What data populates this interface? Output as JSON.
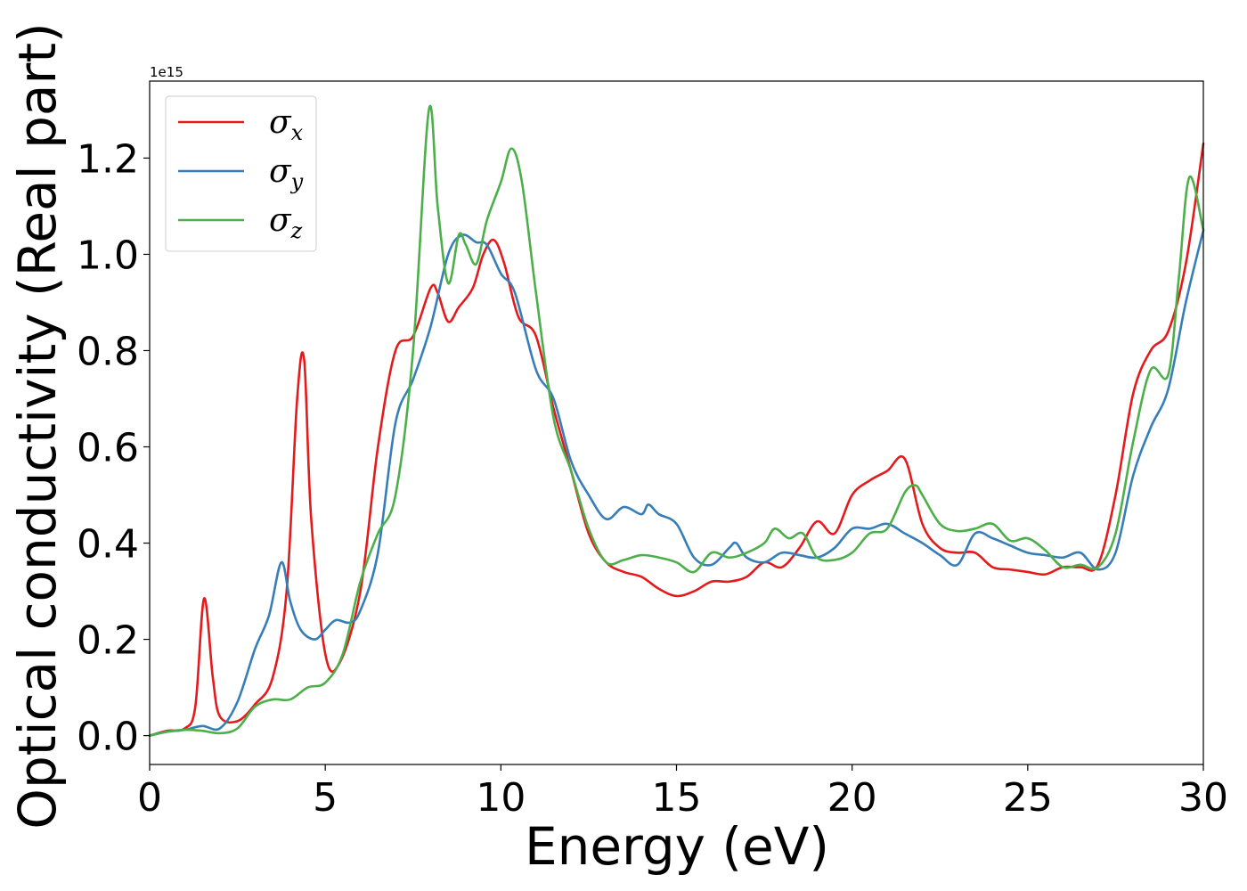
{
  "chart_data": {
    "type": "line",
    "xlabel": "Energy (eV)",
    "ylabel": "Optical conductivity (Real part)",
    "y_offset_label": "1e15",
    "xlim": [
      0,
      30
    ],
    "ylim": [
      -0.06,
      1.36
    ],
    "x_ticks": [
      0,
      5,
      10,
      15,
      20,
      25,
      30
    ],
    "x_tick_labels": [
      "0",
      "5",
      "10",
      "15",
      "20",
      "25",
      "30"
    ],
    "y_ticks": [
      0.0,
      0.2,
      0.4,
      0.6,
      0.8,
      1.0,
      1.2
    ],
    "y_tick_labels": [
      "0.0",
      "0.2",
      "0.4",
      "0.6",
      "0.8",
      "1.0",
      "1.2"
    ],
    "grid": false,
    "legend_position": "top-left",
    "series": [
      {
        "name": "σ",
        "subscript": "x",
        "color": "#e41a1c",
        "points": [
          [
            0,
            0
          ],
          [
            0.5,
            0.01
          ],
          [
            1.0,
            0.015
          ],
          [
            1.3,
            0.06
          ],
          [
            1.55,
            0.285
          ],
          [
            1.8,
            0.12
          ],
          [
            2.0,
            0.04
          ],
          [
            2.5,
            0.03
          ],
          [
            3.0,
            0.065
          ],
          [
            3.5,
            0.12
          ],
          [
            3.9,
            0.3
          ],
          [
            4.2,
            0.7
          ],
          [
            4.4,
            0.78
          ],
          [
            4.6,
            0.45
          ],
          [
            5.0,
            0.17
          ],
          [
            5.4,
            0.15
          ],
          [
            6.0,
            0.3
          ],
          [
            6.5,
            0.6
          ],
          [
            7.0,
            0.8
          ],
          [
            7.5,
            0.83
          ],
          [
            8.0,
            0.93
          ],
          [
            8.2,
            0.92
          ],
          [
            8.5,
            0.86
          ],
          [
            8.8,
            0.89
          ],
          [
            9.2,
            0.93
          ],
          [
            9.5,
            1.0
          ],
          [
            9.8,
            1.03
          ],
          [
            10.1,
            0.98
          ],
          [
            10.5,
            0.87
          ],
          [
            11.0,
            0.83
          ],
          [
            11.5,
            0.68
          ],
          [
            12.0,
            0.55
          ],
          [
            12.5,
            0.42
          ],
          [
            13.0,
            0.36
          ],
          [
            13.5,
            0.34
          ],
          [
            14.0,
            0.33
          ],
          [
            14.5,
            0.305
          ],
          [
            15.0,
            0.29
          ],
          [
            15.5,
            0.3
          ],
          [
            16.0,
            0.32
          ],
          [
            16.5,
            0.32
          ],
          [
            17.0,
            0.33
          ],
          [
            17.5,
            0.36
          ],
          [
            18.0,
            0.35
          ],
          [
            18.5,
            0.39
          ],
          [
            19.0,
            0.445
          ],
          [
            19.5,
            0.42
          ],
          [
            20.0,
            0.5
          ],
          [
            20.5,
            0.53
          ],
          [
            21.0,
            0.55
          ],
          [
            21.5,
            0.575
          ],
          [
            22.0,
            0.44
          ],
          [
            22.5,
            0.39
          ],
          [
            23.0,
            0.38
          ],
          [
            23.5,
            0.38
          ],
          [
            24.0,
            0.35
          ],
          [
            24.5,
            0.345
          ],
          [
            25.0,
            0.34
          ],
          [
            25.5,
            0.335
          ],
          [
            26.0,
            0.35
          ],
          [
            26.5,
            0.35
          ],
          [
            27.0,
            0.355
          ],
          [
            27.5,
            0.5
          ],
          [
            28.0,
            0.71
          ],
          [
            28.5,
            0.8
          ],
          [
            29.0,
            0.84
          ],
          [
            29.5,
            0.98
          ],
          [
            30.0,
            1.23
          ]
        ]
      },
      {
        "name": "σ",
        "subscript": "y",
        "color": "#377eb8",
        "points": [
          [
            0,
            0
          ],
          [
            0.5,
            0.008
          ],
          [
            1.0,
            0.012
          ],
          [
            1.5,
            0.02
          ],
          [
            2.0,
            0.015
          ],
          [
            2.5,
            0.07
          ],
          [
            3.0,
            0.18
          ],
          [
            3.4,
            0.25
          ],
          [
            3.75,
            0.36
          ],
          [
            4.0,
            0.28
          ],
          [
            4.3,
            0.22
          ],
          [
            4.7,
            0.2
          ],
          [
            5.0,
            0.22
          ],
          [
            5.3,
            0.24
          ],
          [
            5.7,
            0.235
          ],
          [
            6.0,
            0.26
          ],
          [
            6.5,
            0.38
          ],
          [
            7.0,
            0.65
          ],
          [
            7.5,
            0.74
          ],
          [
            8.0,
            0.85
          ],
          [
            8.5,
            1.0
          ],
          [
            8.9,
            1.04
          ],
          [
            9.3,
            1.025
          ],
          [
            9.6,
            1.02
          ],
          [
            10.0,
            0.96
          ],
          [
            10.4,
            0.92
          ],
          [
            11.0,
            0.76
          ],
          [
            11.5,
            0.7
          ],
          [
            12.0,
            0.57
          ],
          [
            12.5,
            0.5
          ],
          [
            13.0,
            0.45
          ],
          [
            13.5,
            0.475
          ],
          [
            14.0,
            0.46
          ],
          [
            14.2,
            0.48
          ],
          [
            14.5,
            0.46
          ],
          [
            15.0,
            0.44
          ],
          [
            15.5,
            0.37
          ],
          [
            16.0,
            0.355
          ],
          [
            16.5,
            0.39
          ],
          [
            16.7,
            0.4
          ],
          [
            17.0,
            0.37
          ],
          [
            17.5,
            0.36
          ],
          [
            18.0,
            0.38
          ],
          [
            18.5,
            0.375
          ],
          [
            19.0,
            0.37
          ],
          [
            19.5,
            0.39
          ],
          [
            20.0,
            0.43
          ],
          [
            20.5,
            0.43
          ],
          [
            21.0,
            0.44
          ],
          [
            21.5,
            0.42
          ],
          [
            22.0,
            0.4
          ],
          [
            22.5,
            0.375
          ],
          [
            23.0,
            0.355
          ],
          [
            23.5,
            0.42
          ],
          [
            24.0,
            0.41
          ],
          [
            24.5,
            0.395
          ],
          [
            25.0,
            0.38
          ],
          [
            25.5,
            0.375
          ],
          [
            26.0,
            0.37
          ],
          [
            26.5,
            0.38
          ],
          [
            27.0,
            0.345
          ],
          [
            27.5,
            0.38
          ],
          [
            28.0,
            0.54
          ],
          [
            28.5,
            0.64
          ],
          [
            29.0,
            0.72
          ],
          [
            29.5,
            0.9
          ],
          [
            30.0,
            1.05
          ]
        ]
      },
      {
        "name": "σ",
        "subscript": "z",
        "color": "#4daf4a",
        "points": [
          [
            0,
            0
          ],
          [
            0.5,
            0.008
          ],
          [
            1.0,
            0.012
          ],
          [
            1.5,
            0.01
          ],
          [
            2.0,
            0.005
          ],
          [
            2.5,
            0.015
          ],
          [
            3.0,
            0.06
          ],
          [
            3.5,
            0.075
          ],
          [
            4.0,
            0.075
          ],
          [
            4.5,
            0.1
          ],
          [
            5.0,
            0.11
          ],
          [
            5.5,
            0.17
          ],
          [
            6.0,
            0.32
          ],
          [
            6.5,
            0.42
          ],
          [
            7.0,
            0.5
          ],
          [
            7.5,
            0.8
          ],
          [
            7.95,
            1.3
          ],
          [
            8.2,
            1.1
          ],
          [
            8.5,
            0.94
          ],
          [
            8.8,
            1.04
          ],
          [
            9.0,
            1.02
          ],
          [
            9.3,
            0.98
          ],
          [
            9.6,
            1.07
          ],
          [
            10.0,
            1.15
          ],
          [
            10.3,
            1.22
          ],
          [
            10.6,
            1.15
          ],
          [
            11.0,
            0.92
          ],
          [
            11.5,
            0.66
          ],
          [
            12.0,
            0.55
          ],
          [
            12.5,
            0.43
          ],
          [
            13.0,
            0.36
          ],
          [
            13.5,
            0.365
          ],
          [
            14.0,
            0.375
          ],
          [
            14.5,
            0.37
          ],
          [
            15.0,
            0.36
          ],
          [
            15.5,
            0.34
          ],
          [
            16.0,
            0.38
          ],
          [
            16.5,
            0.37
          ],
          [
            17.0,
            0.38
          ],
          [
            17.5,
            0.4
          ],
          [
            17.8,
            0.43
          ],
          [
            18.2,
            0.41
          ],
          [
            18.6,
            0.42
          ],
          [
            19.0,
            0.37
          ],
          [
            19.5,
            0.365
          ],
          [
            20.0,
            0.38
          ],
          [
            20.5,
            0.42
          ],
          [
            21.0,
            0.43
          ],
          [
            21.5,
            0.505
          ],
          [
            21.8,
            0.52
          ],
          [
            22.0,
            0.5
          ],
          [
            22.5,
            0.44
          ],
          [
            23.0,
            0.425
          ],
          [
            23.5,
            0.43
          ],
          [
            24.0,
            0.44
          ],
          [
            24.5,
            0.405
          ],
          [
            25.0,
            0.41
          ],
          [
            25.5,
            0.385
          ],
          [
            26.0,
            0.35
          ],
          [
            26.5,
            0.355
          ],
          [
            27.0,
            0.35
          ],
          [
            27.5,
            0.42
          ],
          [
            28.0,
            0.61
          ],
          [
            28.5,
            0.76
          ],
          [
            29.0,
            0.75
          ],
          [
            29.3,
            0.95
          ],
          [
            29.6,
            1.16
          ],
          [
            30.0,
            1.05
          ]
        ]
      }
    ]
  }
}
